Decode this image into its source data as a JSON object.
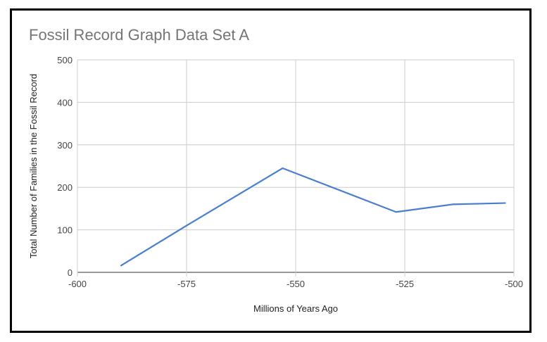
{
  "chart_data": {
    "type": "line",
    "title": "Fossil Record Graph Data Set A",
    "xlabel": "Millions of Years Ago",
    "ylabel": "Total Number of Families in the Fossil Record",
    "xlim": [
      -600,
      -500
    ],
    "ylim": [
      0,
      500
    ],
    "x_ticks": [
      -600,
      -575,
      -550,
      -525,
      -500
    ],
    "y_ticks": [
      0,
      100,
      200,
      300,
      400,
      500
    ],
    "grid": true,
    "series": [
      {
        "color": "#4a7fd0",
        "x": [
          -590,
          -575,
          -553,
          -527,
          -514,
          -502
        ],
        "y": [
          16,
          110,
          245,
          142,
          160,
          163
        ]
      }
    ]
  }
}
